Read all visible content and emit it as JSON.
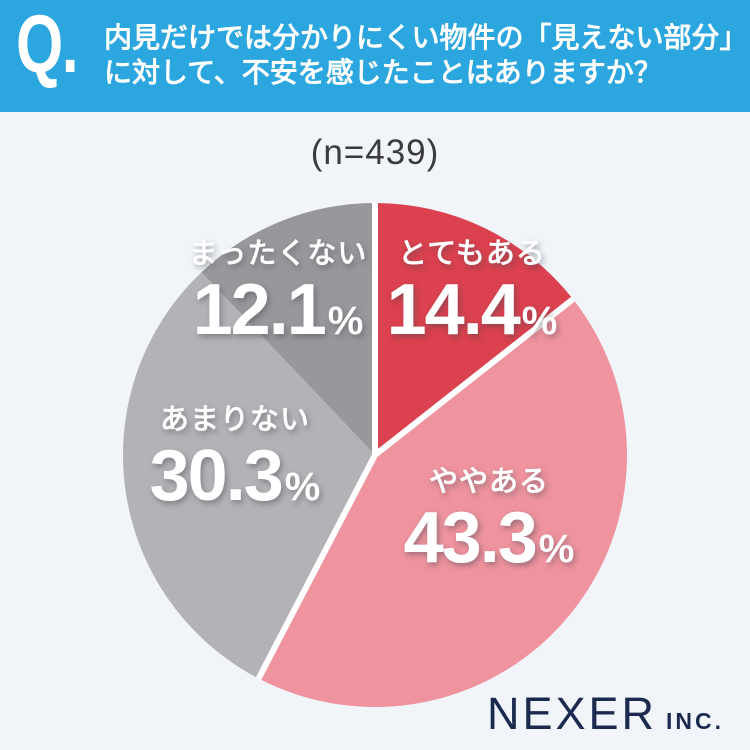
{
  "header": {
    "q_mark": "Q.",
    "line1": "内見だけでは分かりにくい物件の「見えない部分」",
    "line2": "に対して、不安を感じたことはありますか？",
    "bg_color": "#2BA6DF",
    "text_color": "#FFFFFF"
  },
  "chart_data": {
    "type": "pie",
    "title": "内見だけでは分かりにくい物件の「見えない部分」に対して、不安を感じたことはありますか？",
    "sample_label": "(n=439)",
    "start_angle_deg": 0,
    "direction": "clockwise",
    "percent_sign": "%",
    "separator_color": "#FFFFFF",
    "label_text_color": "#FFFFFF",
    "slices": [
      {
        "label": "とてもある",
        "value": 14.4,
        "color": "#DB414E",
        "separator_at_start": true
      },
      {
        "label": "ややある",
        "value": 43.3,
        "color": "#EF939E",
        "separator_at_start": true
      },
      {
        "label": "あまりない",
        "value": 30.3,
        "color": "#B3B2B6",
        "separator_at_start": true
      },
      {
        "label": "まったくない",
        "value": 12.1,
        "color": "#98979B",
        "separator_at_start": false
      }
    ]
  },
  "sample_text_color": "#3B3B3B",
  "footer": {
    "brand": "NEXER",
    "suffix": "INC.",
    "color": "#1B2A4E"
  },
  "page_bg": "#F1F5FA"
}
